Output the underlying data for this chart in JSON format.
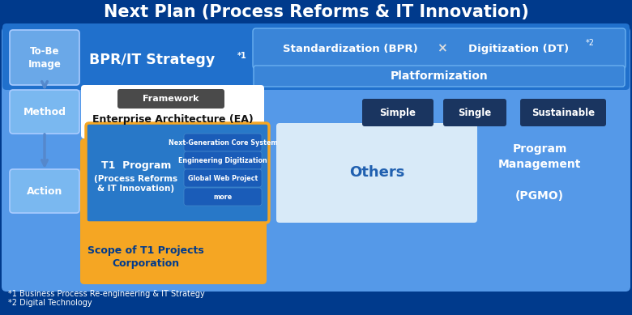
{
  "title": "Next Plan (Process Reforms & IT Innovation)",
  "bg_outer": "#003a8c",
  "bg_main": "#3b8fe8",
  "bg_top_band": "#2070cc",
  "bg_tobe": "#6aa8e8",
  "bg_method_action": "#7ab8f0",
  "bg_white": "#ffffff",
  "bg_dark_gray": "#555555",
  "bg_dark_navy": "#1a3560",
  "bg_orange": "#f5a623",
  "bg_t1_inner": "#2878c8",
  "bg_btn": "#1a5cb8",
  "bg_others": "#d8eaf8",
  "color_white": "#ffffff",
  "color_dark_blue": "#003a8c",
  "color_t1_text": "#1a5cb8",
  "color_others_text": "#2060b0",
  "footnote1": "*1 Business Process Re-engineering & IT Strategy",
  "footnote2": "*2 Digital Technology",
  "simple_single_sustainable": [
    "Simple",
    "Single",
    "Sustainable"
  ],
  "t1_buttons": [
    "Next-Generation Core System",
    "Engineering Digitization",
    "Global Web Project",
    "more"
  ]
}
